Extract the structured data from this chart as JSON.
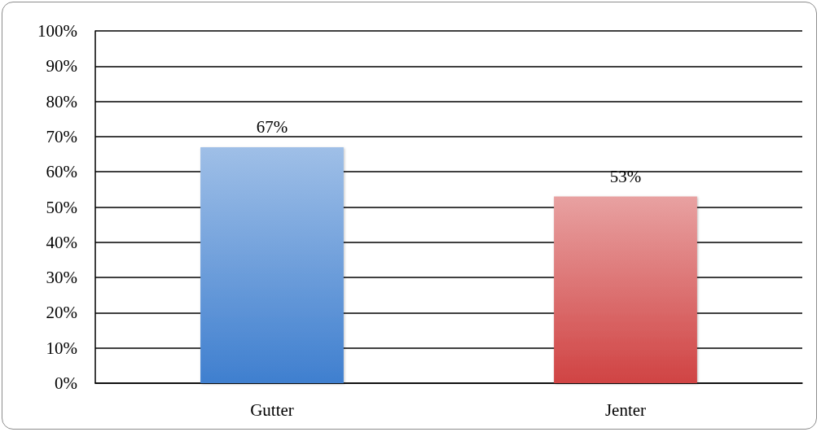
{
  "chart_data": {
    "type": "bar",
    "categories": [
      "Gutter",
      "Jenter"
    ],
    "values": [
      67,
      53
    ],
    "colors": [
      "#3f7fcf",
      "#d04343"
    ],
    "value_labels": [
      "67%",
      "53%"
    ],
    "ylim": [
      0,
      100
    ],
    "yticks": [
      {
        "value": 0,
        "label": "0%"
      },
      {
        "value": 10,
        "label": "10%"
      },
      {
        "value": 20,
        "label": "20%"
      },
      {
        "value": 30,
        "label": "30%"
      },
      {
        "value": 40,
        "label": "40%"
      },
      {
        "value": 50,
        "label": "50%"
      },
      {
        "value": 60,
        "label": "60%"
      },
      {
        "value": 70,
        "label": "70%"
      },
      {
        "value": 80,
        "label": "80%"
      },
      {
        "value": 90,
        "label": "90%"
      },
      {
        "value": 100,
        "label": "100%"
      }
    ],
    "grid": "y"
  }
}
